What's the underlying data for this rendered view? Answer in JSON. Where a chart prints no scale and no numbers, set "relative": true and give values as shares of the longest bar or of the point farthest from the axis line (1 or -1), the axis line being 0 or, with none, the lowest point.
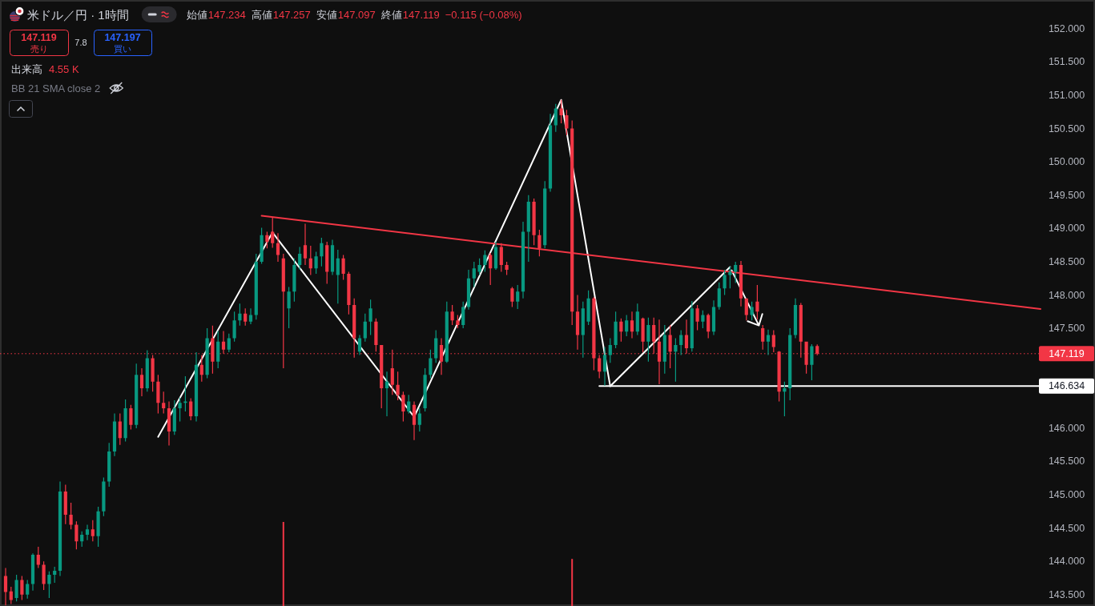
{
  "chart_data": [
    {
      "type": "candlestick",
      "title": "米ドル／円 · 1時間",
      "categories": [
        null,
        null,
        null,
        null,
        null,
        null,
        null,
        null,
        null,
        null,
        null,
        null,
        null,
        null,
        null,
        null,
        null,
        null,
        null,
        null,
        null,
        null,
        null,
        null,
        null,
        null,
        null,
        null,
        null,
        null,
        null,
        null,
        null,
        null,
        null,
        null,
        null,
        null,
        null,
        null,
        null,
        null,
        null,
        null,
        null,
        null,
        null,
        null,
        null,
        null,
        null,
        null,
        null,
        null,
        null,
        null,
        null,
        null,
        null,
        null,
        null,
        null,
        null,
        null,
        null,
        null,
        null,
        null,
        null,
        null,
        null,
        null,
        null,
        null,
        null,
        null,
        null,
        null,
        null,
        null,
        null,
        null,
        null,
        null,
        null,
        null,
        null,
        null,
        null,
        null,
        null,
        null,
        null,
        null,
        null,
        null,
        null,
        null,
        null,
        null,
        null,
        null,
        null,
        null,
        null,
        null,
        null,
        null,
        null,
        null,
        null,
        null,
        null,
        null,
        null,
        null,
        null,
        null,
        null,
        null,
        null,
        null,
        null,
        null,
        null,
        null,
        null,
        null,
        null,
        null,
        null,
        null,
        null,
        null,
        null,
        null,
        null,
        null,
        null,
        null,
        null,
        null,
        null,
        null,
        null,
        null,
        null,
        null,
        null,
        null,
        null,
        null,
        null,
        null,
        null,
        null,
        null,
        null,
        null,
        null,
        null,
        null,
        null,
        null,
        null,
        null,
        null,
        null,
        null,
        null,
        null,
        null,
        null,
        null,
        null,
        null,
        null,
        null,
        null,
        null,
        null,
        null,
        null,
        null,
        null,
        null,
        null,
        null,
        null,
        null,
        null
      ],
      "ohlc": [
        [
          143.78,
          143.9,
          143.34,
          143.54
        ],
        [
          143.55,
          143.62,
          143.36,
          143.42
        ],
        [
          143.45,
          143.8,
          143.4,
          143.72
        ],
        [
          143.72,
          143.78,
          143.42,
          143.5
        ],
        [
          143.5,
          143.72,
          143.44,
          143.66
        ],
        [
          143.66,
          144.12,
          143.56,
          144.1
        ],
        [
          144.1,
          144.22,
          143.9,
          143.95
        ],
        [
          143.95,
          144.0,
          143.57,
          143.66
        ],
        [
          143.66,
          143.85,
          143.45,
          143.8
        ],
        [
          143.8,
          143.92,
          143.68,
          143.86
        ],
        [
          143.86,
          145.2,
          143.78,
          145.05
        ],
        [
          145.05,
          145.15,
          144.56,
          144.7
        ],
        [
          144.7,
          144.88,
          144.48,
          144.55
        ],
        [
          144.55,
          144.6,
          144.18,
          144.3
        ],
        [
          144.3,
          144.45,
          144.22,
          144.4
        ],
        [
          144.4,
          144.55,
          144.32,
          144.48
        ],
        [
          144.48,
          144.62,
          144.3,
          144.38
        ],
        [
          144.38,
          144.82,
          144.22,
          144.75
        ],
        [
          144.75,
          145.26,
          144.68,
          145.2
        ],
        [
          145.2,
          145.78,
          145.12,
          145.65
        ],
        [
          145.65,
          146.22,
          145.58,
          146.1
        ],
        [
          146.1,
          146.22,
          145.75,
          145.85
        ],
        [
          145.85,
          146.43,
          145.8,
          146.3
        ],
        [
          146.3,
          146.35,
          145.98,
          146.05
        ],
        [
          146.05,
          146.97,
          146.0,
          146.8
        ],
        [
          146.8,
          146.9,
          146.48,
          146.6
        ],
        [
          146.6,
          147.17,
          146.55,
          147.05
        ],
        [
          147.05,
          147.1,
          146.55,
          146.7
        ],
        [
          146.7,
          146.8,
          146.22,
          146.38
        ],
        [
          146.38,
          146.55,
          146.22,
          146.3
        ],
        [
          146.3,
          146.4,
          145.74,
          145.95
        ],
        [
          145.95,
          146.42,
          145.9,
          146.3
        ],
        [
          146.3,
          146.46,
          146.1,
          146.38
        ],
        [
          146.38,
          146.78,
          146.25,
          146.4
        ],
        [
          146.4,
          146.45,
          146.12,
          146.18
        ],
        [
          146.18,
          147.14,
          146.1,
          146.95
        ],
        [
          146.95,
          147.1,
          146.7,
          146.8
        ],
        [
          146.8,
          147.5,
          146.75,
          147.35
        ],
        [
          147.35,
          147.54,
          146.82,
          147.0
        ],
        [
          147.0,
          147.46,
          146.9,
          147.3
        ],
        [
          147.3,
          147.46,
          147.12,
          147.18
        ],
        [
          147.18,
          147.42,
          147.14,
          147.35
        ],
        [
          147.35,
          147.75,
          147.3,
          147.62
        ],
        [
          147.62,
          147.87,
          147.54,
          147.72
        ],
        [
          147.72,
          147.8,
          147.54,
          147.6
        ],
        [
          147.6,
          147.8,
          147.56,
          147.7
        ],
        [
          147.7,
          148.62,
          147.63,
          148.5
        ],
        [
          148.5,
          149.01,
          148.47,
          148.9
        ],
        [
          148.9,
          148.95,
          148.7,
          148.8
        ],
        [
          148.95,
          149.16,
          148.71,
          148.78
        ],
        [
          148.78,
          148.93,
          148.5,
          148.6
        ],
        [
          148.55,
          148.62,
          146.9,
          148.05
        ],
        [
          147.8,
          148.12,
          147.5,
          148.05
        ],
        [
          148.05,
          148.55,
          147.9,
          148.45
        ],
        [
          148.45,
          148.72,
          148.38,
          148.62
        ],
        [
          148.75,
          149.07,
          148.45,
          148.55
        ],
        [
          148.55,
          148.74,
          148.3,
          148.4
        ],
        [
          148.4,
          148.65,
          148.32,
          148.58
        ],
        [
          148.58,
          148.86,
          148.43,
          148.78
        ],
        [
          148.75,
          148.8,
          148.17,
          148.35
        ],
        [
          148.35,
          148.83,
          148.3,
          148.75
        ],
        [
          148.3,
          148.68,
          147.87,
          148.55
        ],
        [
          148.55,
          148.6,
          148.23,
          148.32
        ],
        [
          148.32,
          148.35,
          147.71,
          147.85
        ],
        [
          147.85,
          147.95,
          147.06,
          147.35
        ],
        [
          147.15,
          147.4,
          147.1,
          147.35
        ],
        [
          147.35,
          147.72,
          147.3,
          147.6
        ],
        [
          147.6,
          147.93,
          147.4,
          147.8
        ],
        [
          147.6,
          147.65,
          147.15,
          147.25
        ],
        [
          147.25,
          147.25,
          146.3,
          146.6
        ],
        [
          146.6,
          146.85,
          146.18,
          146.7
        ],
        [
          146.9,
          147.18,
          146.5,
          146.65
        ],
        [
          146.65,
          146.85,
          146.42,
          146.5
        ],
        [
          146.5,
          146.55,
          146.1,
          146.25
        ],
        [
          146.25,
          146.5,
          146.22,
          146.4
        ],
        [
          146.35,
          146.4,
          145.82,
          146.05
        ],
        [
          146.05,
          146.3,
          145.95,
          146.22
        ],
        [
          146.3,
          146.9,
          146.25,
          146.8
        ],
        [
          146.8,
          147.18,
          146.75,
          147.05
        ],
        [
          147.05,
          147.47,
          146.98,
          147.35
        ],
        [
          147.25,
          147.35,
          146.8,
          147.0
        ],
        [
          147.0,
          147.9,
          146.98,
          147.75
        ],
        [
          147.75,
          147.85,
          147.55,
          147.62
        ],
        [
          147.62,
          147.7,
          147.5,
          147.55
        ],
        [
          147.55,
          147.9,
          147.5,
          147.82
        ],
        [
          147.82,
          148.38,
          147.78,
          148.25
        ],
        [
          148.25,
          148.5,
          148.12,
          148.4
        ],
        [
          148.35,
          148.55,
          148.3,
          148.45
        ],
        [
          148.45,
          148.67,
          148.35,
          148.6
        ],
        [
          148.6,
          148.63,
          148.15,
          148.4
        ],
        [
          148.4,
          148.8,
          148.38,
          148.72
        ],
        [
          148.72,
          148.78,
          148.35,
          148.45
        ],
        [
          148.45,
          148.5,
          148.3,
          148.38
        ],
        [
          148.1,
          148.12,
          147.82,
          147.9
        ],
        [
          147.9,
          148.15,
          147.79,
          148.05
        ],
        [
          148.05,
          149.1,
          147.95,
          148.95
        ],
        [
          148.95,
          149.5,
          148.5,
          149.4
        ],
        [
          149.4,
          149.45,
          148.75,
          148.9
        ],
        [
          148.9,
          148.98,
          148.58,
          148.7
        ],
        [
          148.75,
          149.71,
          148.7,
          149.6
        ],
        [
          149.6,
          150.72,
          149.55,
          150.55
        ],
        [
          150.55,
          150.87,
          150.45,
          150.8
        ],
        [
          150.8,
          150.93,
          150.58,
          150.7
        ],
        [
          150.7,
          150.78,
          150.4,
          150.5
        ],
        [
          150.5,
          150.62,
          147.55,
          147.75
        ],
        [
          147.75,
          148.0,
          147.18,
          147.4
        ],
        [
          147.4,
          147.9,
          147.06,
          147.8
        ],
        [
          147.6,
          148.07,
          147.55,
          147.95
        ],
        [
          147.95,
          147.97,
          146.87,
          147.05
        ],
        [
          147.05,
          147.1,
          146.75,
          146.85
        ],
        [
          146.85,
          147.22,
          146.64,
          147.1
        ],
        [
          147.1,
          147.35,
          146.98,
          147.25
        ],
        [
          147.25,
          147.75,
          147.2,
          147.6
        ],
        [
          147.6,
          147.65,
          147.3,
          147.45
        ],
        [
          147.45,
          147.7,
          147.38,
          147.62
        ],
        [
          147.62,
          147.75,
          147.35,
          147.45
        ],
        [
          147.45,
          147.87,
          147.4,
          147.75
        ],
        [
          147.65,
          147.66,
          147.14,
          147.3
        ],
        [
          147.3,
          147.66,
          147.0,
          147.55
        ],
        [
          147.55,
          147.66,
          147.12,
          147.3
        ],
        [
          147.3,
          147.63,
          146.66,
          147.0
        ],
        [
          147.0,
          147.55,
          146.82,
          147.4
        ],
        [
          147.4,
          147.55,
          146.9,
          147.15
        ],
        [
          147.15,
          147.35,
          146.7,
          147.25
        ],
        [
          147.25,
          147.47,
          147.1,
          147.4
        ],
        [
          147.4,
          147.63,
          147.12,
          147.2
        ],
        [
          147.2,
          147.91,
          147.15,
          147.8
        ],
        [
          147.8,
          147.85,
          147.47,
          147.6
        ],
        [
          147.6,
          147.77,
          147.5,
          147.7
        ],
        [
          147.7,
          147.72,
          147.35,
          147.45
        ],
        [
          147.45,
          147.92,
          147.4,
          147.82
        ],
        [
          147.82,
          148.19,
          147.78,
          148.1
        ],
        [
          148.1,
          148.38,
          148.0,
          148.3
        ],
        [
          148.3,
          148.43,
          148.1,
          148.35
        ],
        [
          148.35,
          148.5,
          148.18,
          148.45
        ],
        [
          148.45,
          148.51,
          147.83,
          147.95
        ],
        [
          147.95,
          147.95,
          147.62,
          147.7
        ],
        [
          147.7,
          147.9,
          147.62,
          147.82
        ],
        [
          147.9,
          148.15,
          147.63,
          147.75
        ],
        [
          147.5,
          147.55,
          147.18,
          147.3
        ],
        [
          147.3,
          147.48,
          147.1,
          147.4
        ],
        [
          147.4,
          147.47,
          147.14,
          147.22
        ],
        [
          147.15,
          147.16,
          146.4,
          146.55
        ],
        [
          146.55,
          146.7,
          146.18,
          146.6
        ],
        [
          146.6,
          147.5,
          146.42,
          147.4
        ],
        [
          147.4,
          147.95,
          147.35,
          147.85
        ],
        [
          147.85,
          147.88,
          147.06,
          147.3
        ],
        [
          147.3,
          147.3,
          146.82,
          146.95
        ],
        [
          146.95,
          147.26,
          146.72,
          147.23
        ],
        [
          147.234,
          147.257,
          147.097,
          147.119
        ],
        null,
        null,
        null,
        null,
        null,
        null,
        null,
        null,
        null,
        null,
        null,
        null,
        null,
        null,
        null,
        null,
        null,
        null,
        null,
        null,
        null,
        null,
        null,
        null,
        null,
        null,
        null,
        null,
        null,
        null,
        null,
        null,
        null,
        null,
        null,
        null,
        null,
        null,
        null,
        null,
        null
      ],
      "series": [
        {
          "type": "line",
          "color": "#ffffff",
          "values": [
            null,
            null,
            null,
            null,
            null,
            null,
            null,
            null,
            null,
            null,
            null,
            null,
            null,
            null,
            null,
            null,
            null,
            null,
            null,
            null,
            null,
            null,
            null,
            null,
            null,
            null,
            null,
            null,
            145.87,
            null,
            null,
            null,
            null,
            null,
            null,
            null,
            null,
            null,
            null,
            null,
            null,
            null,
            null,
            null,
            null,
            null,
            null,
            null,
            null,
            148.94,
            null,
            null,
            null,
            null,
            null,
            null,
            null,
            null,
            null,
            null,
            null,
            null,
            null,
            null,
            null,
            null,
            null,
            null,
            null,
            null,
            null,
            null,
            null,
            null,
            null,
            146.17,
            null,
            null,
            null,
            null,
            null,
            null,
            null,
            null,
            null,
            null,
            null,
            null,
            null,
            null,
            null,
            null,
            null,
            null,
            null,
            null,
            null,
            null,
            null,
            null,
            null,
            null,
            150.93,
            null,
            null,
            null,
            null,
            null,
            null,
            null,
            null,
            146.63,
            null,
            null,
            null,
            null,
            null,
            null,
            null,
            null,
            null,
            null,
            null,
            null,
            null,
            null,
            null,
            null,
            null,
            null,
            null,
            null,
            null,
            148.42,
            null,
            null,
            null,
            null,
            null,
            null,
            null,
            null,
            null,
            null,
            null,
            null,
            null,
            null,
            null,
            null,
            null,
            null,
            null,
            null,
            null,
            null,
            null,
            null,
            null,
            null,
            null,
            null,
            null,
            null,
            null,
            null,
            null,
            null,
            null,
            null,
            null,
            null,
            null,
            null,
            null,
            null,
            null,
            null,
            null,
            null,
            null,
            null,
            null,
            null,
            null,
            null,
            null,
            null,
            null,
            null,
            null
          ]
        },
        {
          "type": "line",
          "color": "#f23645",
          "values": [
            null,
            null,
            null,
            null,
            null,
            null,
            null,
            null,
            null,
            null,
            null,
            null,
            null,
            null,
            null,
            null,
            null,
            null,
            null,
            null,
            null,
            null,
            null,
            null,
            null,
            null,
            null,
            null,
            null,
            null,
            null,
            null,
            null,
            null,
            null,
            null,
            null,
            null,
            null,
            null,
            null,
            null,
            null,
            null,
            null,
            null,
            null,
            149.19,
            null,
            null,
            null,
            null,
            null,
            null,
            null,
            null,
            null,
            null,
            null,
            null,
            null,
            null,
            null,
            null,
            null,
            null,
            null,
            null,
            null,
            null,
            null,
            null,
            null,
            null,
            null,
            null,
            null,
            null,
            null,
            null,
            null,
            null,
            null,
            null,
            null,
            null,
            null,
            null,
            null,
            null,
            null,
            null,
            null,
            null,
            null,
            null,
            null,
            null,
            null,
            null,
            null,
            null,
            null,
            null,
            null,
            null,
            null,
            null,
            null,
            null,
            null,
            null,
            null,
            null,
            null,
            null,
            null,
            null,
            null,
            null,
            null,
            null,
            null,
            null,
            null,
            null,
            null,
            null,
            null,
            null,
            null,
            null,
            null,
            null,
            null,
            null,
            null,
            null,
            null,
            null,
            null,
            null,
            null,
            null,
            null,
            null,
            null,
            null,
            null,
            null,
            null,
            null,
            null,
            null,
            null,
            null,
            null,
            null,
            null,
            null,
            null,
            null,
            null,
            null,
            null,
            null,
            null,
            null,
            null,
            null,
            null,
            null,
            null,
            null,
            null,
            null,
            null,
            null,
            null,
            null,
            null,
            null,
            null,
            null,
            null,
            null,
            null,
            null,
            null,
            null,
            147.79
          ]
        },
        {
          "type": "line",
          "color": "#ffffff",
          "values": [
            null,
            null,
            null,
            null,
            null,
            null,
            null,
            null,
            null,
            null,
            null,
            null,
            null,
            null,
            null,
            null,
            null,
            null,
            null,
            null,
            null,
            null,
            null,
            null,
            null,
            null,
            null,
            null,
            null,
            null,
            null,
            null,
            null,
            null,
            null,
            null,
            null,
            null,
            null,
            null,
            null,
            null,
            null,
            null,
            null,
            null,
            null,
            null,
            null,
            null,
            null,
            null,
            null,
            null,
            null,
            null,
            null,
            null,
            null,
            null,
            null,
            null,
            null,
            null,
            null,
            null,
            null,
            null,
            null,
            null,
            null,
            null,
            null,
            null,
            null,
            null,
            null,
            null,
            null,
            null,
            null,
            null,
            null,
            null,
            null,
            null,
            null,
            null,
            null,
            null,
            null,
            null,
            null,
            null,
            null,
            null,
            null,
            null,
            null,
            null,
            null,
            null,
            null,
            null,
            null,
            null,
            null,
            null,
            null,
            146.634,
            null,
            null,
            null,
            null,
            null,
            null,
            null,
            null,
            null,
            null,
            null,
            null,
            null,
            null,
            null,
            null,
            null,
            null,
            null,
            null,
            null,
            null,
            null,
            null,
            null,
            null,
            null,
            null,
            null,
            null,
            null,
            null,
            null,
            null,
            null,
            null,
            null,
            null,
            null,
            null,
            null,
            null,
            null,
            null,
            null,
            null,
            null,
            null,
            null,
            null,
            null,
            null,
            null,
            null,
            null,
            null,
            null,
            null,
            null,
            null,
            null,
            null,
            null,
            null,
            null,
            null,
            null,
            null,
            null,
            null,
            null,
            null,
            null,
            null,
            null,
            null,
            null,
            null,
            null,
            null,
            146.634
          ],
          "value_labels": [
            null,
            null,
            null,
            null,
            null,
            null,
            null,
            null,
            null,
            null,
            null,
            null,
            null,
            null,
            null,
            null,
            null,
            null,
            null,
            null,
            null,
            null,
            null,
            null,
            null,
            null,
            null,
            null,
            null,
            null,
            null,
            null,
            null,
            null,
            null,
            null,
            null,
            null,
            null,
            null,
            null,
            null,
            null,
            null,
            null,
            null,
            null,
            null,
            null,
            null,
            null,
            null,
            null,
            null,
            null,
            null,
            null,
            null,
            null,
            null,
            null,
            null,
            null,
            null,
            null,
            null,
            null,
            null,
            null,
            null,
            null,
            null,
            null,
            null,
            null,
            null,
            null,
            null,
            null,
            null,
            null,
            null,
            null,
            null,
            null,
            null,
            null,
            null,
            null,
            null,
            null,
            null,
            null,
            null,
            null,
            null,
            null,
            null,
            null,
            null,
            null,
            null,
            null,
            null,
            null,
            null,
            null,
            null,
            null,
            null,
            null,
            null,
            null,
            null,
            null,
            null,
            null,
            null,
            null,
            null,
            null,
            null,
            null,
            null,
            null,
            null,
            null,
            null,
            null,
            null,
            null,
            null,
            null,
            null,
            null,
            null,
            null,
            null,
            null,
            null,
            null,
            null,
            null,
            null,
            null,
            null,
            null,
            null,
            null,
            null,
            null,
            null,
            null,
            null,
            null,
            null,
            null,
            null,
            null,
            null,
            null,
            null,
            null,
            null,
            null,
            null,
            null,
            null,
            null,
            null,
            null,
            null,
            null,
            null,
            null,
            null,
            null,
            null,
            null,
            null,
            null,
            null,
            null,
            null,
            null,
            null,
            null,
            null,
            null,
            null,
            "146.634"
          ]
        }
      ],
      "ylim": [
        143.33,
        152.43
      ],
      "yticks": [
        {
          "value": 143.5,
          "label": "143.500"
        },
        {
          "value": 144,
          "label": "144.000"
        },
        {
          "value": 144.5,
          "label": "144.500"
        },
        {
          "value": 145,
          "label": "145.000"
        },
        {
          "value": 145.5,
          "label": "145.500"
        },
        {
          "value": 146,
          "label": "146.000"
        },
        {
          "value": 147.5,
          "label": "147.500"
        },
        {
          "value": 148,
          "label": "148.000"
        },
        {
          "value": 148.5,
          "label": "148.500"
        },
        {
          "value": 149,
          "label": "149.000"
        },
        {
          "value": 149.5,
          "label": "149.500"
        },
        {
          "value": 150,
          "label": "150.000"
        },
        {
          "value": 150.5,
          "label": "150.500"
        },
        {
          "value": 151,
          "label": "151.000"
        },
        {
          "value": 151.5,
          "label": "151.500"
        },
        {
          "value": 152,
          "label": "152.000"
        }
      ],
      "ref_lines": [
        {
          "axis": "y",
          "value": 147.119,
          "label": "147.119",
          "color": "#f23645",
          "line_style": "dotted"
        }
      ],
      "annotations": [
        "始値",
        "147.234",
        "高値",
        "147.257",
        "安値",
        "147.097",
        "終値",
        "147.119",
        "−0.115 (−0.08%)",
        "147.119",
        "売り",
        "7.8",
        "147.197",
        "買い",
        "出来高",
        "4.55 K",
        "BB 21 SMA close 2"
      ],
      "tick_labels": "y"
    },
    {
      "type": "bar",
      "relative": true,
      "color": "#f23645",
      "tick_labels": false,
      "categories": [
        null,
        null,
        null,
        null,
        null,
        null,
        null,
        null,
        null,
        null,
        null,
        null,
        null,
        null,
        null,
        null,
        null,
        null,
        null,
        null,
        null,
        null,
        null,
        null,
        null,
        null,
        null,
        null,
        null,
        null,
        null,
        null,
        null,
        null,
        null,
        null,
        null,
        null,
        null,
        null,
        null,
        null,
        null,
        null,
        null,
        null,
        null,
        null,
        null,
        null,
        null,
        null,
        null,
        null,
        null,
        null,
        null,
        null,
        null,
        null,
        null,
        null,
        null,
        null,
        null,
        null,
        null,
        null,
        null,
        null,
        null,
        null,
        null,
        null,
        null,
        null,
        null,
        null,
        null,
        null,
        null,
        null,
        null,
        null,
        null,
        null,
        null,
        null,
        null,
        null,
        null,
        null,
        null,
        null,
        null,
        null,
        null,
        null,
        null,
        null,
        null,
        null,
        null,
        null,
        null,
        null,
        null,
        null,
        null,
        null,
        null,
        null,
        null,
        null,
        null,
        null,
        null,
        null,
        null,
        null,
        null,
        null,
        null,
        null,
        null,
        null,
        null,
        null,
        null,
        null,
        null,
        null,
        null,
        null,
        null,
        null,
        null,
        null,
        null,
        null,
        null,
        null,
        null,
        null,
        null,
        null,
        null,
        null,
        null,
        null,
        null,
        null,
        null,
        null,
        null,
        null,
        null,
        null,
        null,
        null,
        null,
        null,
        null,
        null,
        null,
        null,
        null,
        null,
        null,
        null,
        null,
        null,
        null,
        null,
        null,
        null,
        null,
        null,
        null,
        null,
        null,
        null,
        null,
        null,
        null,
        null,
        null,
        null,
        null,
        null,
        null
      ],
      "values": [
        null,
        null,
        null,
        null,
        null,
        null,
        null,
        null,
        null,
        null,
        null,
        null,
        null,
        null,
        null,
        null,
        null,
        null,
        null,
        null,
        null,
        null,
        null,
        null,
        null,
        null,
        null,
        null,
        null,
        null,
        null,
        null,
        null,
        null,
        null,
        null,
        null,
        null,
        null,
        null,
        null,
        null,
        null,
        null,
        null,
        null,
        null,
        null,
        null,
        null,
        null,
        1,
        null,
        null,
        null,
        null,
        null,
        null,
        null,
        null,
        null,
        null,
        null,
        null,
        null,
        null,
        null,
        null,
        null,
        null,
        null,
        null,
        null,
        null,
        null,
        null,
        null,
        null,
        null,
        null,
        null,
        null,
        null,
        null,
        null,
        null,
        null,
        null,
        null,
        null,
        null,
        null,
        null,
        null,
        null,
        null,
        null,
        null,
        null,
        null,
        null,
        null,
        null,
        null,
        0.56,
        null,
        null,
        null,
        null,
        null,
        null,
        null,
        null,
        null,
        null,
        null,
        null,
        null,
        null,
        null,
        null,
        null,
        null,
        null,
        null,
        null,
        null,
        null,
        null,
        null,
        null,
        null,
        null,
        null,
        null,
        null,
        null,
        null,
        null,
        null,
        null,
        null,
        null,
        null,
        null,
        null,
        null,
        null,
        null,
        null,
        null,
        null,
        null,
        null,
        null,
        null,
        null,
        null,
        null,
        null,
        null,
        null,
        null,
        null,
        null,
        null,
        null,
        null,
        null,
        null,
        null,
        null,
        null,
        null,
        null,
        null,
        null,
        null,
        null,
        null,
        null,
        null,
        null,
        null,
        null,
        null,
        null,
        null,
        null,
        null,
        null
      ]
    }
  ]
}
